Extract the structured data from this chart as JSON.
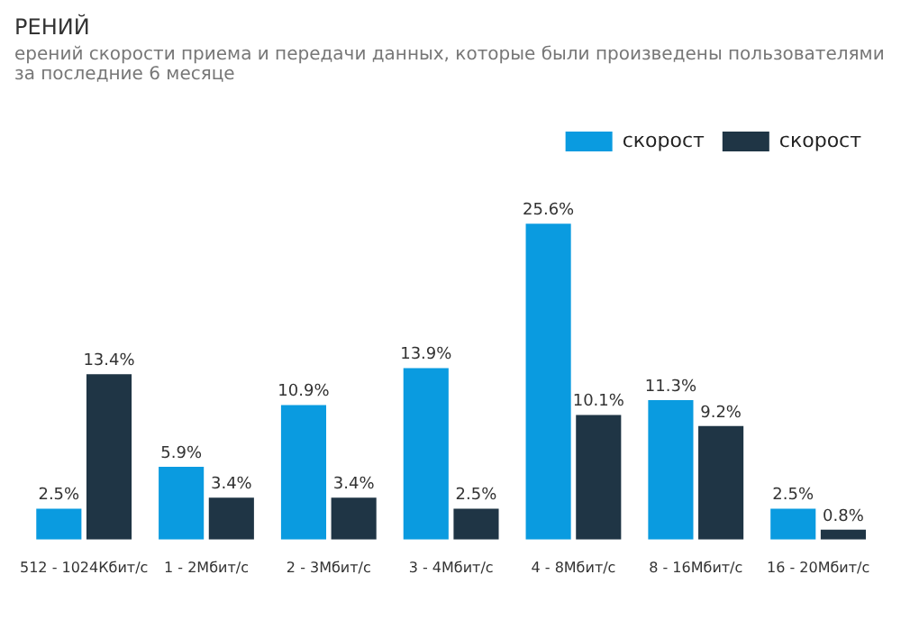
{
  "chart_data": {
    "type": "bar",
    "title": "РЕНИЙ",
    "subtitle": "ерений скорости приема и передачи данных, которые были произведены пользователями за последние 6 месяце",
    "categories": [
      "512 - 1024Кбит/с",
      "1 - 2Мбит/с",
      "2 - 3Мбит/с",
      "3 - 4Мбит/с",
      "4 - 8Мбит/с",
      "8 - 16Мбит/с",
      "16 - 20Мбит/с"
    ],
    "series": [
      {
        "name": "скорост",
        "color": "#0a9be0",
        "values": [
          2.5,
          5.9,
          10.9,
          13.9,
          25.6,
          11.3,
          2.5
        ],
        "value_labels": [
          "2.5%",
          "5.9%",
          "10.9%",
          "13.9%",
          "25.6%",
          "11.3%",
          "2.5%"
        ]
      },
      {
        "name": "скорост",
        "color": "#1f3545",
        "values": [
          13.4,
          3.4,
          3.4,
          2.5,
          10.1,
          9.2,
          0.8
        ],
        "value_labels": [
          "13.4%",
          "3.4%",
          "3.4%",
          "2.5%",
          "10.1%",
          "9.2%",
          "0.8%"
        ]
      }
    ],
    "legend": "top right",
    "grid": false
  }
}
